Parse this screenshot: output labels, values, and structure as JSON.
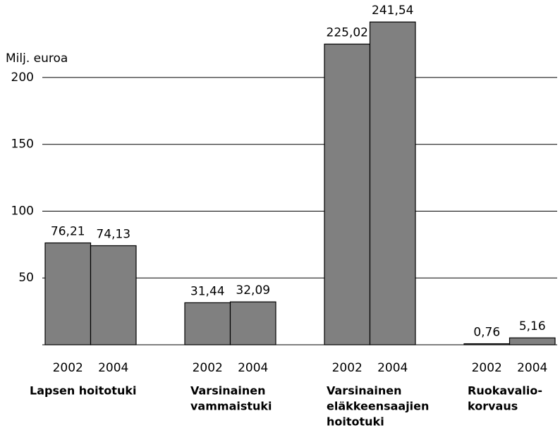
{
  "chart_data": {
    "type": "bar",
    "y_label": "Milj. euroa",
    "categories": [
      [
        "Lapsen hoitotuki"
      ],
      [
        "Varsinainen",
        "vammaistuki"
      ],
      [
        "Varsinainen",
        "eläkkeensaajien",
        "hoitotuki"
      ],
      [
        "Ruokavalio-",
        "korvaus"
      ]
    ],
    "series": [
      {
        "name": "2002",
        "color": "#808080",
        "values": [
          76.21,
          31.44,
          225.02,
          0.76
        ],
        "value_labels": [
          "76,21",
          "31,44",
          "225,02",
          "0,76"
        ]
      },
      {
        "name": "2004",
        "color": "#808080",
        "values": [
          74.13,
          32.09,
          241.54,
          5.16
        ],
        "value_labels": [
          "74,13",
          "32,09",
          "241,54",
          "5,16"
        ]
      }
    ],
    "ylim": [
      0,
      258
    ],
    "yticks": [
      50,
      100,
      150,
      200
    ],
    "grid": true
  }
}
